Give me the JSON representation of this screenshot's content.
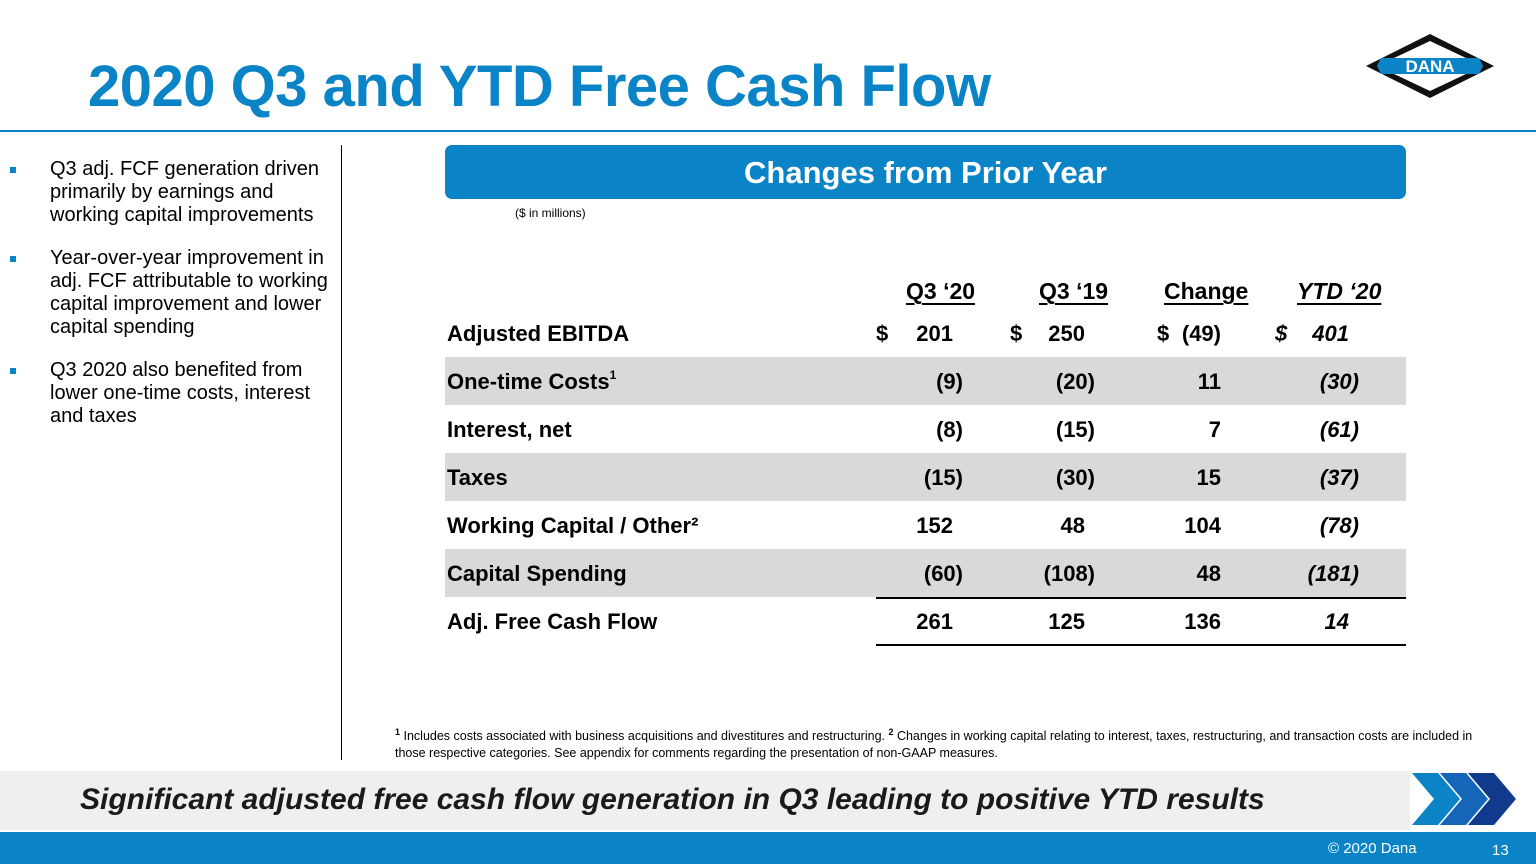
{
  "title": "2020 Q3 and YTD Free Cash Flow",
  "logo_text": "DANA",
  "bullets": [
    "Q3 adj. FCF generation driven primarily by earnings and working capital improvements",
    "Year-over-year improvement in adj. FCF attributable to working capital improvement and lower capital spending",
    "Q3 2020 also benefited from lower one-time costs, interest and taxes"
  ],
  "banner": "Changes from Prior Year",
  "units": "($ in millions)",
  "columns": [
    "Q3 ‘20",
    "Q3 ‘19",
    "Change",
    "YTD ‘20"
  ],
  "table": {
    "dollar_sign": "$",
    "rows": [
      {
        "label": "Adjusted EBITDA",
        "sup": "",
        "values": [
          "201",
          "250",
          "(49)",
          "401"
        ],
        "dollar": true,
        "shaded": false
      },
      {
        "label": "One-time Costs",
        "sup": "1",
        "values": [
          "(9)",
          "(20)",
          "11",
          "(30)"
        ],
        "dollar": false,
        "shaded": true
      },
      {
        "label": "Interest, net",
        "sup": "",
        "values": [
          "(8)",
          "(15)",
          "7",
          "(61)"
        ],
        "dollar": false,
        "shaded": false
      },
      {
        "label": "Taxes",
        "sup": "",
        "values": [
          "(15)",
          "(30)",
          "15",
          "(37)"
        ],
        "dollar": false,
        "shaded": true
      },
      {
        "label": "Working Capital / Other²",
        "sup": "",
        "values": [
          "152",
          "48",
          "104",
          "(78)"
        ],
        "dollar": false,
        "shaded": false
      },
      {
        "label": "Capital Spending",
        "sup": "",
        "values": [
          "(60)",
          "(108)",
          "48",
          "(181)"
        ],
        "dollar": false,
        "shaded": true
      },
      {
        "label": "Adj. Free Cash Flow",
        "sup": "",
        "values": [
          "261",
          "125",
          "136",
          "14"
        ],
        "dollar": false,
        "shaded": false
      }
    ]
  },
  "footnote": {
    "sup1": "1",
    "text1": " Includes costs associated with business acquisitions and divestitures and restructuring. ",
    "sup2": "2",
    "text2": " Changes in working capital relating to interest, taxes, restructuring, and transaction costs are included in those respective categories.  See appendix for comments regarding the presentation of non-GAAP measures."
  },
  "tagline": "Significant adjusted free cash flow generation in Q3 leading to positive YTD results",
  "copyright": "© 2020 Dana",
  "page_number": "13",
  "colors": {
    "accent": "#0a84c6",
    "dark_blue": "#123a8c",
    "row_shade": "#d9d9d9"
  }
}
